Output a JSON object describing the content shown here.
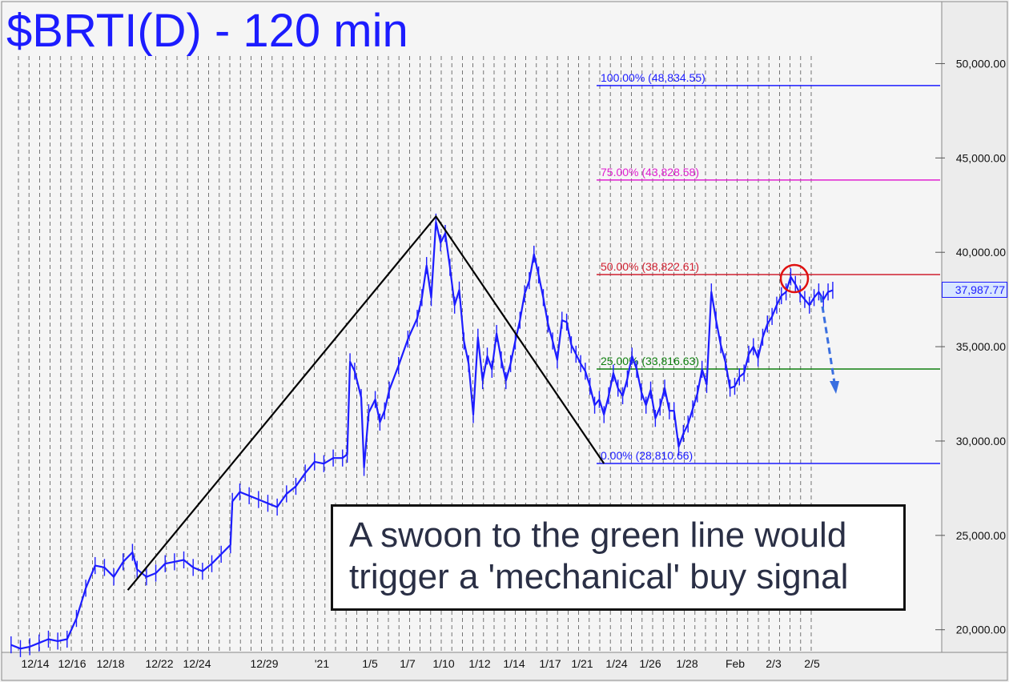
{
  "chart_data": {
    "type": "line",
    "title": "$BRTI(D) - 120 min",
    "y_axis": {
      "position": "right",
      "range": [
        18800,
        53200
      ],
      "ticks": [
        "20,000.00",
        "25,000.00",
        "30,000.00",
        "35,000.00",
        "40,000.00",
        "45,000.00",
        "50,000.00"
      ],
      "tick_values": [
        20000,
        25000,
        30000,
        35000,
        40000,
        45000,
        50000
      ]
    },
    "x_axis": {
      "tick_labels": [
        "12/14",
        "12/16",
        "12/18",
        "12/22",
        "12/24",
        "12/29",
        "'21",
        "1/5",
        "1/7",
        "1/10",
        "1/12",
        "1/14",
        "1/17",
        "1/21",
        "1/24",
        "1/26",
        "1/28",
        "Feb",
        "2/3",
        "2/5"
      ],
      "range": [
        0,
        100
      ]
    },
    "last_price": "37,987.77",
    "fib_levels": [
      {
        "label": "100.00% (48,834.55)",
        "value": 48834.55,
        "color": "#1c1cff"
      },
      {
        "label": "75.00% (43,828.58)",
        "value": 43828.58,
        "color": "#e020d0"
      },
      {
        "label": "50.00% (38,822.61)",
        "value": 38822.61,
        "color": "#d02030"
      },
      {
        "label": "25.00% (33,816.63)",
        "value": 33816.63,
        "color": "#108010"
      },
      {
        "label": "0.00% (28,810.66)",
        "value": 28810.66,
        "color": "#1c1cff"
      }
    ],
    "pattern_points": [
      {
        "x": 13.0,
        "y": 22100
      },
      {
        "x": 46.0,
        "y": 41900
      },
      {
        "x": 64.0,
        "y": 28810.66
      }
    ],
    "series": [
      {
        "color": "#1c1cff",
        "points": [
          [
            0.5,
            19200
          ],
          [
            1.5,
            19000
          ],
          [
            2.5,
            19100
          ],
          [
            3.5,
            19300
          ],
          [
            4.5,
            19500
          ],
          [
            5.5,
            19400
          ],
          [
            6.5,
            19500
          ],
          [
            7.5,
            20600
          ],
          [
            8.5,
            22200
          ],
          [
            9.5,
            23400
          ],
          [
            10.5,
            23300
          ],
          [
            11.5,
            22800
          ],
          [
            12.5,
            23600
          ],
          [
            13.5,
            24100
          ],
          [
            14.0,
            23200
          ],
          [
            15.0,
            22800
          ],
          [
            16.0,
            23000
          ],
          [
            17.0,
            23500
          ],
          [
            18.0,
            23600
          ],
          [
            19.0,
            23700
          ],
          [
            20.0,
            23300
          ],
          [
            21.0,
            23100
          ],
          [
            22.0,
            23500
          ],
          [
            23.0,
            24000
          ],
          [
            24.0,
            24500
          ],
          [
            24.2,
            26800
          ],
          [
            25.0,
            27300
          ],
          [
            26.0,
            27100
          ],
          [
            27.0,
            26900
          ],
          [
            28.0,
            26700
          ],
          [
            29.0,
            26500
          ],
          [
            30.0,
            27200
          ],
          [
            31.0,
            27600
          ],
          [
            32.0,
            28300
          ],
          [
            33.0,
            28900
          ],
          [
            34.0,
            28800
          ],
          [
            35.0,
            29100
          ],
          [
            36.0,
            29100
          ],
          [
            36.5,
            29300
          ],
          [
            36.8,
            34200
          ],
          [
            37.3,
            33700
          ],
          [
            38.0,
            32300
          ],
          [
            38.3,
            28600
          ],
          [
            38.8,
            31500
          ],
          [
            39.5,
            32200
          ],
          [
            40.0,
            31000
          ],
          [
            40.5,
            31600
          ],
          [
            41.0,
            32700
          ],
          [
            42.0,
            34000
          ],
          [
            43.0,
            35400
          ],
          [
            44.0,
            36500
          ],
          [
            44.5,
            37600
          ],
          [
            45.0,
            39300
          ],
          [
            45.5,
            37600
          ],
          [
            46.0,
            41600
          ],
          [
            46.5,
            40500
          ],
          [
            47.0,
            41000
          ],
          [
            47.5,
            39200
          ],
          [
            48.0,
            37200
          ],
          [
            48.5,
            38000
          ],
          [
            49.0,
            35300
          ],
          [
            49.5,
            34100
          ],
          [
            50.0,
            31400
          ],
          [
            50.5,
            35500
          ],
          [
            51.0,
            33200
          ],
          [
            51.5,
            34500
          ],
          [
            52.0,
            33800
          ],
          [
            52.5,
            35700
          ],
          [
            53.0,
            34300
          ],
          [
            53.5,
            33200
          ],
          [
            54.0,
            34100
          ],
          [
            54.5,
            35300
          ],
          [
            55.0,
            36400
          ],
          [
            55.5,
            37800
          ],
          [
            56.0,
            38500
          ],
          [
            56.5,
            39900
          ],
          [
            57.0,
            38800
          ],
          [
            57.5,
            37600
          ],
          [
            58.0,
            36200
          ],
          [
            58.5,
            35300
          ],
          [
            59.0,
            34300
          ],
          [
            59.5,
            36400
          ],
          [
            60.0,
            36300
          ],
          [
            60.5,
            35100
          ],
          [
            61.0,
            34600
          ],
          [
            61.5,
            34100
          ],
          [
            62.0,
            33700
          ],
          [
            62.5,
            32900
          ],
          [
            63.0,
            31900
          ],
          [
            63.5,
            32200
          ],
          [
            64.0,
            31400
          ],
          [
            64.5,
            32400
          ],
          [
            65.0,
            33600
          ],
          [
            65.5,
            32800
          ],
          [
            66.0,
            32400
          ],
          [
            66.5,
            33300
          ],
          [
            67.0,
            34500
          ],
          [
            67.5,
            33800
          ],
          [
            68.0,
            32600
          ],
          [
            68.5,
            31900
          ],
          [
            69.0,
            32700
          ],
          [
            69.5,
            31200
          ],
          [
            70.0,
            31800
          ],
          [
            70.5,
            32800
          ],
          [
            71.0,
            31600
          ],
          [
            71.5,
            31600
          ],
          [
            72.0,
            29700
          ],
          [
            72.5,
            30400
          ],
          [
            73.0,
            30900
          ],
          [
            73.5,
            31700
          ],
          [
            74.0,
            32500
          ],
          [
            74.5,
            33800
          ],
          [
            75.0,
            33000
          ],
          [
            75.5,
            37900
          ],
          [
            76.0,
            36400
          ],
          [
            76.5,
            35100
          ],
          [
            77.0,
            34200
          ],
          [
            77.5,
            32800
          ],
          [
            78.0,
            32900
          ],
          [
            78.5,
            33400
          ],
          [
            79.0,
            33600
          ],
          [
            79.5,
            34600
          ],
          [
            80.0,
            35000
          ],
          [
            80.5,
            34400
          ],
          [
            81.0,
            35500
          ],
          [
            81.5,
            36200
          ],
          [
            82.0,
            36600
          ],
          [
            82.5,
            37200
          ],
          [
            83.0,
            37700
          ],
          [
            83.5,
            37900
          ],
          [
            84.0,
            38700
          ],
          [
            84.5,
            38300
          ],
          [
            85.0,
            37800
          ],
          [
            85.5,
            37500
          ],
          [
            86.0,
            37200
          ],
          [
            86.5,
            37600
          ],
          [
            87.0,
            37900
          ],
          [
            87.5,
            37500
          ],
          [
            88.0,
            37900
          ],
          [
            88.5,
            37988
          ]
        ]
      }
    ]
  },
  "annotation": {
    "line1": "A swoon to the green line would",
    "line2": "trigger a 'mechanical' buy signal"
  }
}
